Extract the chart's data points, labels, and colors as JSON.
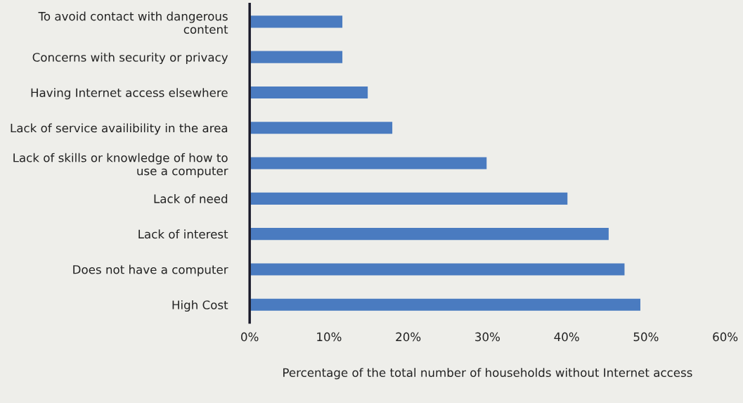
{
  "chart_data": {
    "type": "bar",
    "orientation": "horizontal",
    "xlabel": "Percentage of the total number of households without Internet access",
    "categories": [
      "To avoid contact with dangerous\ncontent",
      "Concerns with security or privacy",
      "Having Internet access elsewhere",
      "Lack of service availibility in the area",
      "Lack of skills or knowledge of how to\nuse a computer",
      "Lack of need",
      "Lack of interest",
      "Does not have a computer",
      "High Cost"
    ],
    "values": [
      11.7,
      11.7,
      14.9,
      18,
      29.9,
      40.1,
      45.3,
      47.3,
      49.3
    ],
    "color": "#4a7bc0",
    "xlim": [
      0,
      60
    ],
    "xticks": [
      {
        "value": 0,
        "label": "0%"
      },
      {
        "value": 10,
        "label": "10%"
      },
      {
        "value": 20,
        "label": "20%"
      },
      {
        "value": 30,
        "label": "30%"
      },
      {
        "value": 40,
        "label": "40%"
      },
      {
        "value": 50,
        "label": "50%"
      },
      {
        "value": 60,
        "label": "60%"
      }
    ],
    "grid": false,
    "legend": false
  }
}
